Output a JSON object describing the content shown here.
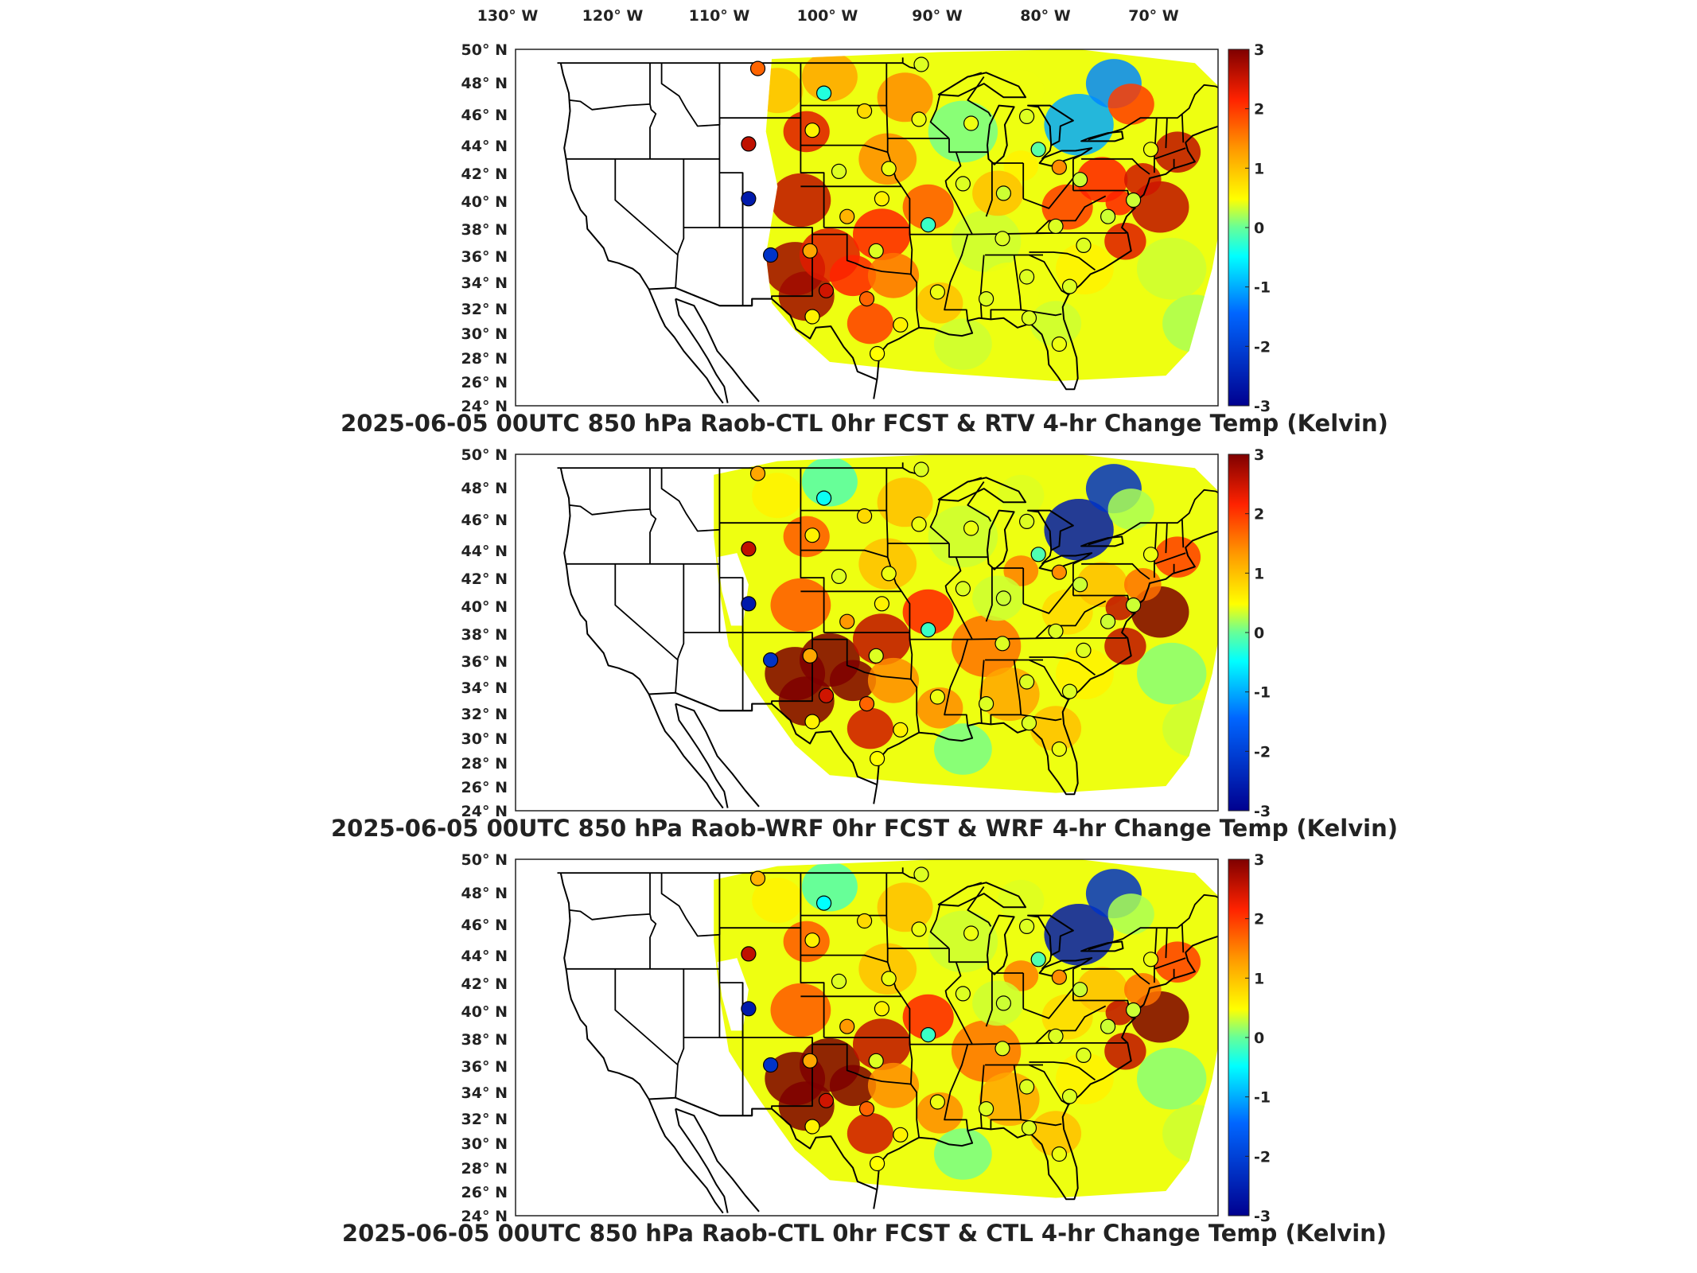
{
  "figure": {
    "top_lon_labels": [
      "130° W",
      "120° W",
      "110° W",
      "100° W",
      "90° W",
      "80° W",
      "70° W"
    ],
    "lat_labels": [
      "50° N",
      "48° N",
      "46° N",
      "44° N",
      "42° N",
      "40° N",
      "38° N",
      "36° N",
      "34° N",
      "32° N",
      "30° N",
      "28° N",
      "26° N",
      "24° N"
    ]
  },
  "colorbar": {
    "ticks": [
      "3",
      "2",
      "1",
      "0",
      "-1",
      "-2",
      "-3"
    ],
    "stops": [
      "#7f0000",
      "#ff2200",
      "#ff9900",
      "#ffff00",
      "#66ff99",
      "#00ffff",
      "#0066ff",
      "#00008f"
    ]
  },
  "panels": [
    {
      "id": "ctl_rtv",
      "title": "2025-06-05 00UTC 850 hPa Raob-CTL 0hr FCST & RTV 4-hr Change Temp (Kelvin)"
    },
    {
      "id": "wrf",
      "title": "2025-06-05 00UTC 850 hPa Raob-WRF 0hr FCST & WRF 4-hr Change Temp (Kelvin)"
    },
    {
      "id": "ctl",
      "title": "2025-06-05 00UTC 850 hPa Raob-CTL 0hr FCST & CTL 4-hr Change Temp (Kelvin)"
    }
  ],
  "stations": [
    {
      "lon": -107.7,
      "lat": 48.6,
      "v": [
        1.7,
        1.2,
        1.1
      ]
    },
    {
      "lon": -102.0,
      "lat": 46.8,
      "v": [
        -1.0,
        -1.2,
        -1.3
      ]
    },
    {
      "lon": -98.5,
      "lat": 45.5,
      "v": [
        0.8,
        0.8,
        0.8
      ]
    },
    {
      "lon": -93.6,
      "lat": 48.9,
      "v": [
        0.3,
        0.3,
        0.3
      ]
    },
    {
      "lon": -93.8,
      "lat": 44.9,
      "v": [
        0.4,
        0.4,
        0.4
      ]
    },
    {
      "lon": -89.3,
      "lat": 44.6,
      "v": [
        0.4,
        0.4,
        0.4
      ]
    },
    {
      "lon": -84.5,
      "lat": 45.1,
      "v": [
        0.3,
        0.3,
        0.3
      ]
    },
    {
      "lon": -83.5,
      "lat": 42.7,
      "v": [
        -0.5,
        -0.6,
        -0.6
      ]
    },
    {
      "lon": -108.5,
      "lat": 43.1,
      "v": [
        2.6,
        2.6,
        2.6
      ]
    },
    {
      "lon": -108.5,
      "lat": 39.1,
      "v": [
        -2.8,
        -2.8,
        -2.8
      ]
    },
    {
      "lon": -106.6,
      "lat": 35.0,
      "v": [
        -2.6,
        -2.6,
        -2.6
      ]
    },
    {
      "lon": -103.0,
      "lat": 44.1,
      "v": [
        0.6,
        0.6,
        0.6
      ]
    },
    {
      "lon": -100.7,
      "lat": 41.1,
      "v": [
        0.3,
        0.3,
        0.3
      ]
    },
    {
      "lon": -96.4,
      "lat": 41.3,
      "v": [
        0.4,
        0.4,
        0.4
      ]
    },
    {
      "lon": -97.0,
      "lat": 39.1,
      "v": [
        0.6,
        0.6,
        0.6
      ]
    },
    {
      "lon": -100.0,
      "lat": 37.8,
      "v": [
        1.1,
        1.3,
        1.3
      ]
    },
    {
      "lon": -93.0,
      "lat": 37.2,
      "v": [
        -0.8,
        -0.8,
        -0.8
      ]
    },
    {
      "lon": -97.5,
      "lat": 35.3,
      "v": [
        0.3,
        0.3,
        0.3
      ]
    },
    {
      "lon": -90.0,
      "lat": 40.2,
      "v": [
        0.3,
        0.3,
        0.3
      ]
    },
    {
      "lon": -86.5,
      "lat": 39.5,
      "v": [
        0.2,
        0.2,
        0.2
      ]
    },
    {
      "lon": -81.7,
      "lat": 41.4,
      "v": [
        1.4,
        1.4,
        1.4
      ]
    },
    {
      "lon": -79.9,
      "lat": 40.5,
      "v": [
        0.2,
        0.2,
        0.2
      ]
    },
    {
      "lon": -73.8,
      "lat": 42.7,
      "v": [
        0.4,
        0.4,
        0.4
      ]
    },
    {
      "lon": -75.3,
      "lat": 39.0,
      "v": [
        0.2,
        0.2,
        0.2
      ]
    },
    {
      "lon": -77.5,
      "lat": 37.8,
      "v": [
        0.2,
        0.2,
        0.2
      ]
    },
    {
      "lon": -82.0,
      "lat": 37.1,
      "v": [
        0.3,
        0.3,
        0.3
      ]
    },
    {
      "lon": -79.6,
      "lat": 35.7,
      "v": [
        0.3,
        0.3,
        0.3
      ]
    },
    {
      "lon": -86.6,
      "lat": 36.2,
      "v": [
        0.3,
        0.3,
        0.3
      ]
    },
    {
      "lon": -92.2,
      "lat": 32.3,
      "v": [
        0.4,
        0.4,
        0.4
      ]
    },
    {
      "lon": -88.0,
      "lat": 31.8,
      "v": [
        0.3,
        0.3,
        0.3
      ]
    },
    {
      "lon": -84.5,
      "lat": 33.4,
      "v": [
        0.3,
        0.3,
        0.3
      ]
    },
    {
      "lon": -80.8,
      "lat": 32.7,
      "v": [
        0.3,
        0.3,
        0.3
      ]
    },
    {
      "lon": -84.3,
      "lat": 30.4,
      "v": [
        0.3,
        0.3,
        0.3
      ]
    },
    {
      "lon": -81.7,
      "lat": 28.5,
      "v": [
        0.4,
        0.4,
        0.4
      ]
    },
    {
      "lon": -95.4,
      "lat": 29.9,
      "v": [
        0.6,
        0.6,
        0.6
      ]
    },
    {
      "lon": -97.4,
      "lat": 27.8,
      "v": [
        0.5,
        0.5,
        0.5
      ]
    },
    {
      "lon": -98.3,
      "lat": 31.8,
      "v": [
        1.7,
        1.7,
        1.7
      ]
    },
    {
      "lon": -101.8,
      "lat": 32.4,
      "v": [
        2.5,
        2.5,
        2.5
      ]
    },
    {
      "lon": -103.2,
      "lat": 35.3,
      "v": [
        1.2,
        1.2,
        1.2
      ]
    },
    {
      "lon": -103.0,
      "lat": 30.5,
      "v": [
        0.6,
        0.6,
        0.6
      ]
    }
  ]
}
